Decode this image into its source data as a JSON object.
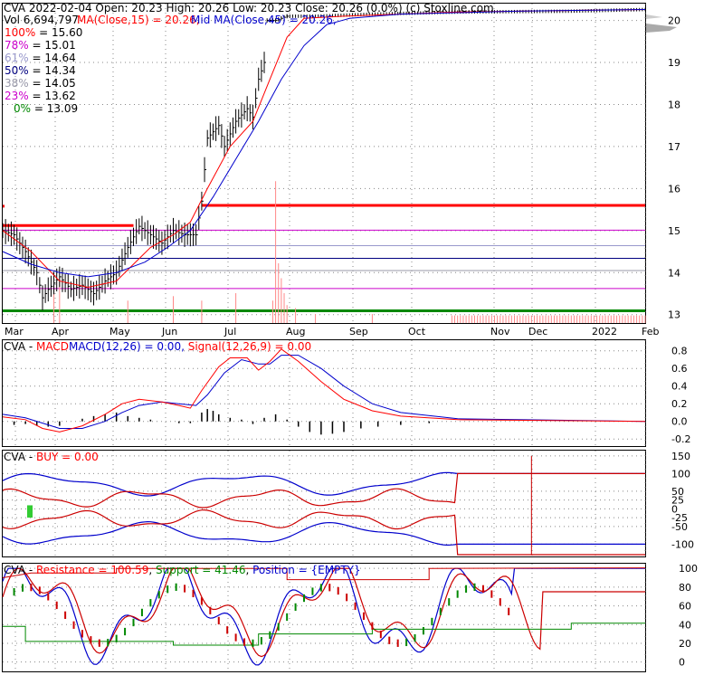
{
  "header": {
    "line1": "CVA  2022-02-04 Open: 20.23  High: 20.26  Low: 20.23  Close: 20.26 (0.0%) (c) Stoxline.com",
    "vol": "Vol 6,694,797",
    "ma15": "MA(Close,15) = 20.26,",
    "ma45": "Mid MA(Close,45) = 20.26,"
  },
  "colors": {
    "ma15": "#ff0000",
    "ma45": "#0000cc",
    "fib_100": "#ff0000",
    "fib_78": "#cc00cc",
    "fib_61": "#9999cc",
    "fib_50": "#000080",
    "fib_38": "#9999aa",
    "fib_23": "#cc00cc",
    "fib_0": "#008800",
    "price": "#000000",
    "volume": "#ff8888",
    "green": "#008800"
  },
  "chart_data": [
    {
      "type": "line",
      "panel": "price",
      "ticker": "CVA",
      "date": "2022-02-04",
      "ohlc": {
        "open": 20.23,
        "high": 20.26,
        "low": 20.23,
        "close": 20.26,
        "change": "0.0%"
      },
      "volume": 6694797,
      "x_labels": [
        "Mar",
        "Apr",
        "May",
        "Jun",
        "Jul",
        "Aug",
        "Sep",
        "Oct",
        "Nov",
        "Dec",
        "2022",
        "Feb"
      ],
      "y_ticks": [
        13,
        14,
        15,
        16,
        17,
        18,
        19,
        20
      ],
      "ylim": [
        12.8,
        20.4
      ],
      "fib_levels": [
        {
          "label": "100%",
          "value": 15.6,
          "text": "= 15.60"
        },
        {
          "label": "78%",
          "value": 15.01,
          "text": "= 15.01"
        },
        {
          "label": "61%",
          "value": 14.64,
          "text": "= 14.64"
        },
        {
          "label": "50%",
          "value": 14.34,
          "text": "= 14.34"
        },
        {
          "label": "38%",
          "value": 14.05,
          "text": "= 14.05"
        },
        {
          "label": "23%",
          "value": 13.62,
          "text": "= 13.62"
        },
        {
          "label": "0%",
          "value": 13.09,
          "text": "= 13.09"
        }
      ],
      "close_path": [
        [
          0,
          15.0
        ],
        [
          4,
          14.9
        ],
        [
          8,
          14.5
        ],
        [
          12,
          14.0
        ],
        [
          14,
          13.4
        ],
        [
          16,
          13.6
        ],
        [
          20,
          13.9
        ],
        [
          24,
          13.6
        ],
        [
          28,
          13.7
        ],
        [
          32,
          13.5
        ],
        [
          36,
          13.8
        ],
        [
          40,
          14.0
        ],
        [
          44,
          14.6
        ],
        [
          48,
          15.1
        ],
        [
          52,
          14.9
        ],
        [
          56,
          14.7
        ],
        [
          60,
          15.0
        ],
        [
          64,
          14.9
        ],
        [
          68,
          14.9
        ],
        [
          70,
          15.7
        ],
        [
          72,
          17.2
        ],
        [
          76,
          17.5
        ],
        [
          78,
          17.0
        ],
        [
          82,
          17.6
        ],
        [
          86,
          17.9
        ],
        [
          88,
          17.7
        ],
        [
          90,
          18.6
        ],
        [
          92,
          19.0
        ],
        [
          93,
          20.0
        ],
        [
          96,
          20.0
        ],
        [
          100,
          20.1
        ],
        [
          110,
          20.1
        ],
        [
          130,
          20.15
        ],
        [
          160,
          20.2
        ],
        [
          200,
          20.22
        ],
        [
          226,
          20.26
        ]
      ],
      "ma15_path": [
        [
          0,
          15.0
        ],
        [
          10,
          14.5
        ],
        [
          20,
          13.8
        ],
        [
          30,
          13.65
        ],
        [
          40,
          13.8
        ],
        [
          46,
          14.2
        ],
        [
          52,
          14.6
        ],
        [
          60,
          14.9
        ],
        [
          66,
          15.2
        ],
        [
          72,
          16.0
        ],
        [
          80,
          17.0
        ],
        [
          88,
          17.6
        ],
        [
          94,
          18.6
        ],
        [
          100,
          19.6
        ],
        [
          106,
          20.05
        ],
        [
          120,
          20.1
        ],
        [
          160,
          20.2
        ],
        [
          226,
          20.26
        ]
      ],
      "ma45_path": [
        [
          0,
          14.5
        ],
        [
          10,
          14.2
        ],
        [
          20,
          14.0
        ],
        [
          30,
          13.9
        ],
        [
          40,
          14.0
        ],
        [
          50,
          14.25
        ],
        [
          58,
          14.6
        ],
        [
          66,
          15.0
        ],
        [
          74,
          15.8
        ],
        [
          82,
          16.7
        ],
        [
          90,
          17.6
        ],
        [
          98,
          18.6
        ],
        [
          106,
          19.4
        ],
        [
          114,
          19.9
        ],
        [
          122,
          20.05
        ],
        [
          140,
          20.15
        ],
        [
          180,
          20.22
        ],
        [
          226,
          20.26
        ]
      ],
      "volume_bars": [
        [
          18,
          0.25
        ],
        [
          20,
          0.3
        ],
        [
          44,
          0.15
        ],
        [
          60,
          0.18
        ],
        [
          70,
          0.15
        ],
        [
          82,
          0.2
        ],
        [
          95,
          0.15
        ],
        [
          96,
          0.95
        ],
        [
          97,
          0.4
        ],
        [
          98,
          0.3
        ],
        [
          99,
          0.2
        ],
        [
          100,
          0.12
        ],
        [
          103,
          0.1
        ],
        [
          110,
          0.06
        ],
        [
          130,
          0.06
        ]
      ],
      "volume_band": {
        "from": 158,
        "to": 226,
        "height": 0.19
      }
    },
    {
      "type": "line",
      "panel": "macd",
      "label": "CVA - MACDMACD(12,26) = 0.00, Signal(12,26,9) = 0.00",
      "y_ticks": [
        -0.2,
        0.0,
        0.2,
        0.4,
        0.6,
        0.8
      ],
      "ylim": [
        -0.28,
        0.92
      ],
      "series": [
        {
          "name": "MACD",
          "values": [
            [
              0,
              0.05
            ],
            [
              8,
              0.02
            ],
            [
              14,
              -0.08
            ],
            [
              20,
              -0.12
            ],
            [
              28,
              -0.05
            ],
            [
              36,
              0.08
            ],
            [
              42,
              0.2
            ],
            [
              48,
              0.25
            ],
            [
              56,
              0.22
            ],
            [
              62,
              0.18
            ],
            [
              66,
              0.15
            ],
            [
              70,
              0.35
            ],
            [
              76,
              0.62
            ],
            [
              80,
              0.72
            ],
            [
              86,
              0.72
            ],
            [
              90,
              0.58
            ],
            [
              94,
              0.68
            ],
            [
              98,
              0.82
            ],
            [
              104,
              0.68
            ],
            [
              112,
              0.45
            ],
            [
              120,
              0.25
            ],
            [
              130,
              0.12
            ],
            [
              140,
              0.06
            ],
            [
              160,
              0.02
            ],
            [
              226,
              0.0
            ]
          ]
        },
        {
          "name": "Signal",
          "values": [
            [
              0,
              0.08
            ],
            [
              8,
              0.04
            ],
            [
              14,
              -0.02
            ],
            [
              20,
              -0.08
            ],
            [
              28,
              -0.08
            ],
            [
              36,
              0.0
            ],
            [
              42,
              0.1
            ],
            [
              48,
              0.18
            ],
            [
              56,
              0.22
            ],
            [
              62,
              0.2
            ],
            [
              68,
              0.18
            ],
            [
              72,
              0.3
            ],
            [
              78,
              0.55
            ],
            [
              84,
              0.7
            ],
            [
              90,
              0.65
            ],
            [
              94,
              0.65
            ],
            [
              98,
              0.75
            ],
            [
              104,
              0.75
            ],
            [
              112,
              0.6
            ],
            [
              120,
              0.4
            ],
            [
              130,
              0.2
            ],
            [
              140,
              0.1
            ],
            [
              160,
              0.03
            ],
            [
              226,
              0.0
            ]
          ]
        }
      ],
      "histogram": [
        [
          4,
          -0.04
        ],
        [
          8,
          -0.03
        ],
        [
          12,
          -0.05
        ],
        [
          16,
          -0.06
        ],
        [
          20,
          -0.05
        ],
        [
          28,
          0.03
        ],
        [
          32,
          0.06
        ],
        [
          36,
          0.08
        ],
        [
          40,
          0.1
        ],
        [
          44,
          0.06
        ],
        [
          48,
          0.04
        ],
        [
          52,
          0.02
        ],
        [
          56,
          0.0
        ],
        [
          62,
          -0.02
        ],
        [
          66,
          -0.02
        ],
        [
          70,
          0.1
        ],
        [
          72,
          0.14
        ],
        [
          74,
          0.12
        ],
        [
          76,
          0.08
        ],
        [
          80,
          0.04
        ],
        [
          84,
          0.02
        ],
        [
          88,
          -0.03
        ],
        [
          92,
          0.04
        ],
        [
          96,
          0.08
        ],
        [
          100,
          0.02
        ],
        [
          104,
          -0.06
        ],
        [
          108,
          -0.12
        ],
        [
          112,
          -0.15
        ],
        [
          116,
          -0.14
        ],
        [
          120,
          -0.12
        ],
        [
          126,
          -0.08
        ],
        [
          132,
          -0.06
        ],
        [
          140,
          -0.04
        ],
        [
          150,
          -0.02
        ]
      ]
    },
    {
      "type": "line",
      "panel": "buy",
      "label": "CVA - BUY = 0.00",
      "y_ticks": [
        -100,
        -50,
        -25,
        0,
        25,
        50,
        100,
        150
      ],
      "ylim": [
        -135,
        165
      ]
    },
    {
      "type": "line",
      "panel": "resistance",
      "label": "CVA - Resistance = 100.59, Support = 41.46, Position = {EMPTY}",
      "y_ticks": [
        0,
        20,
        40,
        60,
        80,
        100
      ],
      "ylim": [
        -10,
        105
      ],
      "resistance": 100.59,
      "support": 41.46,
      "position": "{EMPTY}"
    }
  ]
}
